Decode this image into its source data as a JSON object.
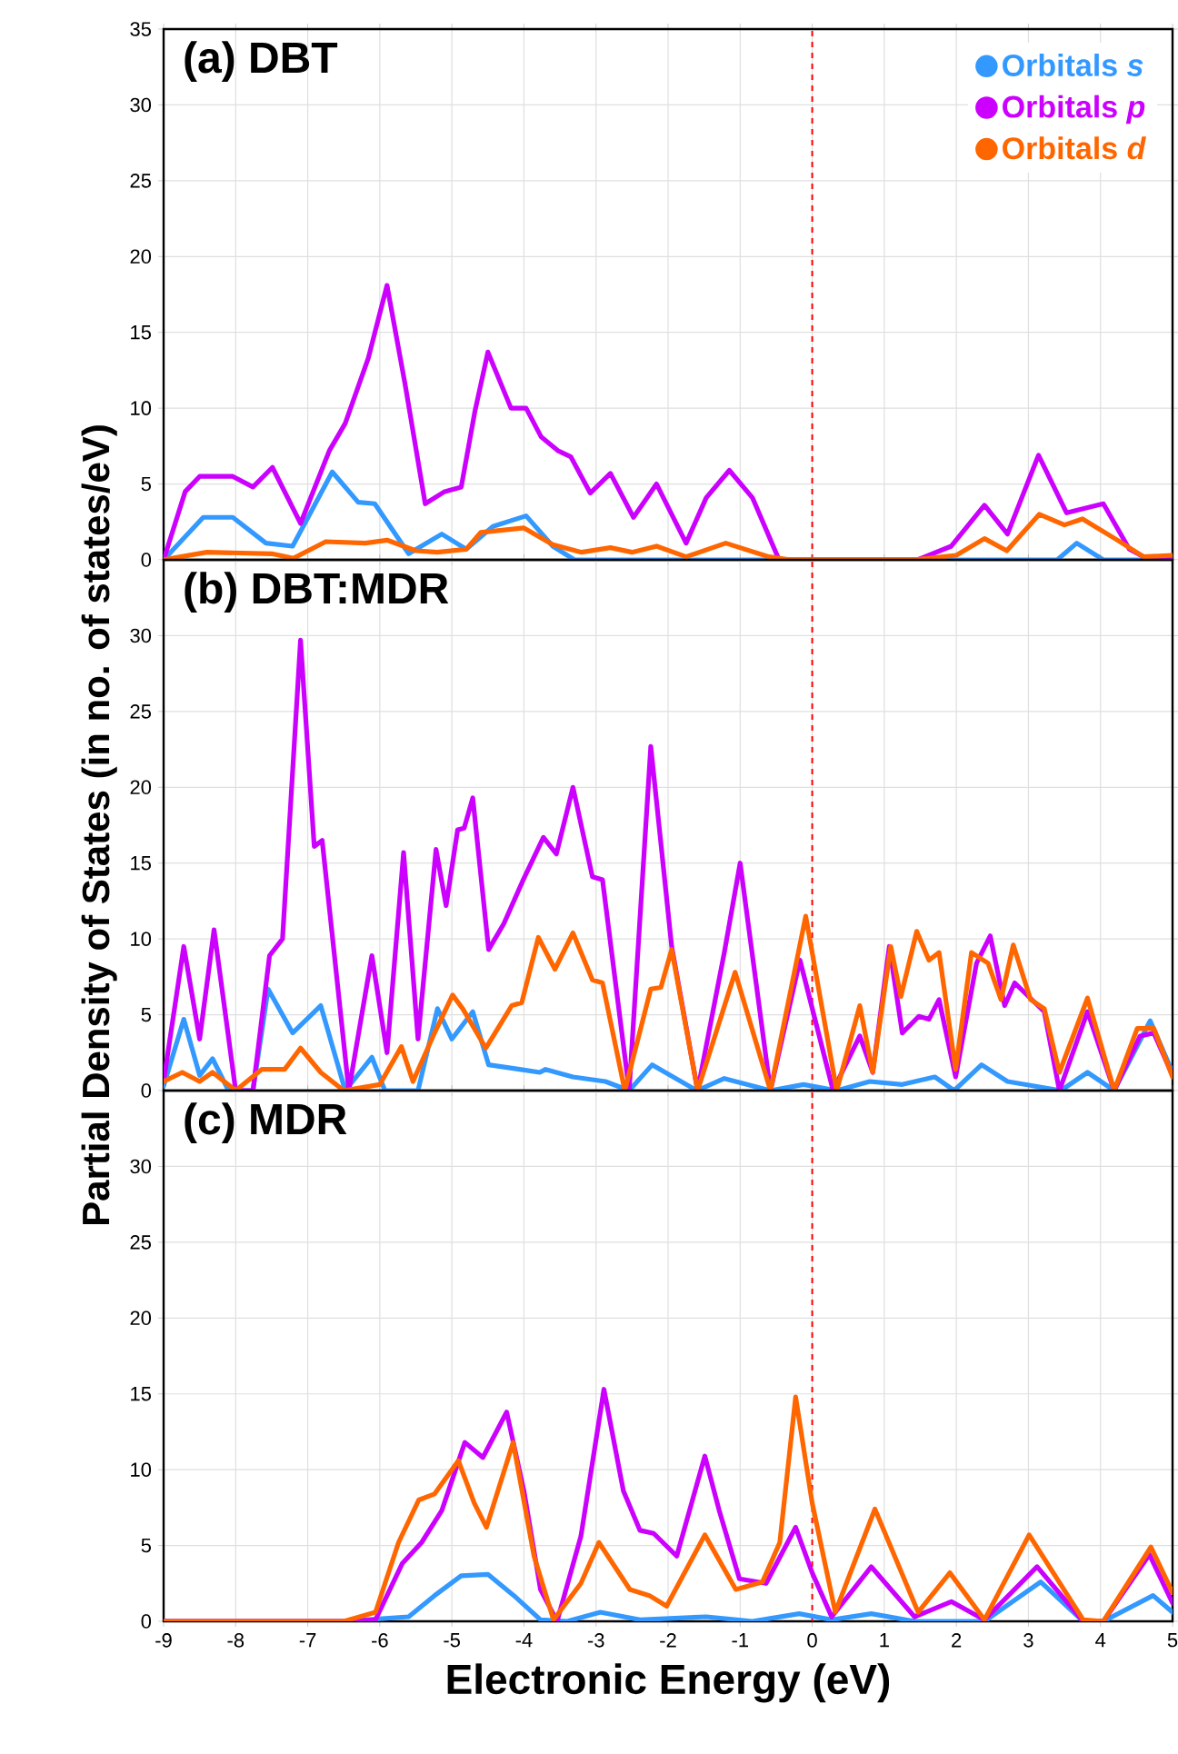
{
  "chart_data": [
    {
      "type": "line",
      "title": "(a) DBT",
      "xlim": [
        -9,
        5
      ],
      "ylim": [
        0,
        35
      ],
      "xticks": [
        -9,
        -8,
        -7,
        -6,
        -5,
        -4,
        -3,
        -2,
        -1,
        0,
        1,
        2,
        3,
        4,
        5
      ],
      "yticks": [
        0,
        5,
        10,
        15,
        20,
        25,
        30,
        35
      ],
      "tick_labels": "y",
      "grid": true,
      "legend": "top right",
      "marker": "none",
      "line_style": "solid",
      "ref_lines": [
        {
          "axis": "x",
          "value": 0,
          "color": "#ff0000",
          "line_style": "dashed"
        }
      ],
      "series": [
        {
          "name": "Orbitals *s*",
          "color": "#3399ff",
          "x": [
            -9,
            -8.45,
            -8.04,
            -7.58,
            -7.21,
            -6.94,
            -6.66,
            -6.3,
            -6.07,
            -5.6,
            -5.14,
            -4.8,
            -4.43,
            -3.97,
            -3.6,
            -3.3,
            3.4,
            3.67,
            4.04,
            5
          ],
          "values": [
            0,
            2.8,
            2.8,
            1.1,
            0.9,
            3.3,
            5.8,
            3.8,
            3.7,
            0.4,
            1.7,
            0.7,
            2.2,
            2.9,
            0.9,
            0,
            0,
            1.1,
            0,
            0
          ]
        },
        {
          "name": "Orbitals *p*",
          "color": "#cc00ff",
          "x": [
            -9,
            -8.7,
            -8.5,
            -8.04,
            -7.76,
            -7.49,
            -7.1,
            -6.7,
            -6.48,
            -6.16,
            -5.9,
            -5.65,
            -5.37,
            -5.1,
            -4.87,
            -4.68,
            -4.5,
            -4.18,
            -3.97,
            -3.76,
            -3.53,
            -3.35,
            -3.08,
            -2.8,
            -2.48,
            -2.16,
            -1.75,
            -1.47,
            -1.15,
            -0.83,
            -0.46,
            0,
            1.46,
            1.93,
            2.39,
            2.71,
            3.14,
            3.53,
            4.04,
            4.4,
            4.68,
            5
          ],
          "values": [
            0,
            4.5,
            5.5,
            5.5,
            4.8,
            6.1,
            2.4,
            7.2,
            9,
            13.3,
            18.1,
            11.6,
            3.7,
            4.5,
            4.8,
            9.8,
            13.7,
            10,
            10,
            8.1,
            7.2,
            6.8,
            4.4,
            5.7,
            2.8,
            5,
            1.1,
            4.1,
            5.9,
            4.1,
            0,
            0,
            0,
            0.9,
            3.6,
            1.7,
            6.9,
            3.1,
            3.7,
            0.7,
            0,
            0.2
          ]
        },
        {
          "name": "Orbitals *d*",
          "color": "#ff6600",
          "x": [
            -9,
            -8.4,
            -7.5,
            -7.2,
            -6.75,
            -6.2,
            -5.9,
            -5.5,
            -5.2,
            -4.8,
            -4.6,
            -4.0,
            -3.6,
            -3.2,
            -2.8,
            -2.5,
            -2.16,
            -1.75,
            -1.2,
            -0.6,
            -0.3,
            1.4,
            2.0,
            2.39,
            2.7,
            3.15,
            3.5,
            3.75,
            4.2,
            4.6,
            5
          ],
          "values": [
            0,
            0.5,
            0.4,
            0.1,
            1.2,
            1.1,
            1.3,
            0.6,
            0.5,
            0.7,
            1.8,
            2.1,
            1.0,
            0.5,
            0.8,
            0.5,
            0.9,
            0.2,
            1.1,
            0.2,
            0,
            0,
            0.3,
            1.4,
            0.6,
            3.0,
            2.3,
            2.7,
            1.4,
            0.2,
            0.3
          ]
        }
      ]
    },
    {
      "type": "line",
      "title": "(b) DBT:MDR",
      "ylabel": "Partial Density of States (in no. of states/eV)",
      "xlim": [
        -9,
        5
      ],
      "ylim": [
        0,
        35
      ],
      "xticks": [
        -9,
        -8,
        -7,
        -6,
        -5,
        -4,
        -3,
        -2,
        -1,
        0,
        1,
        2,
        3,
        4,
        5
      ],
      "yticks": [
        0,
        5,
        10,
        15,
        20,
        25,
        30
      ],
      "tick_labels": "y",
      "grid": true,
      "marker": "none",
      "line_style": "solid",
      "ref_lines": [
        {
          "axis": "x",
          "value": 0,
          "color": "#ff0000",
          "line_style": "dashed"
        }
      ],
      "series": [
        {
          "color": "#3399ff",
          "x": [
            -9,
            -8.72,
            -8.5,
            -8.32,
            -8.1,
            -7.76,
            -7.55,
            -7.21,
            -6.82,
            -6.48,
            -6.11,
            -5.93,
            -5.47,
            -5.2,
            -5.0,
            -4.71,
            -4.49,
            -4.06,
            -3.78,
            -3.7,
            -3.32,
            -2.87,
            -2.54,
            -2.22,
            -1.6,
            -1.22,
            -0.58,
            -0.12,
            0.34,
            0.8,
            1.25,
            1.7,
            1.97,
            2.35,
            2.71,
            3.08,
            3.45,
            3.82,
            4.19,
            4.69,
            5
          ],
          "values": [
            0.3,
            4.7,
            1.0,
            2.1,
            0,
            0,
            6.7,
            3.8,
            5.6,
            0,
            2.2,
            0,
            0,
            5.4,
            3.4,
            5.2,
            1.7,
            1.4,
            1.2,
            1.4,
            0.9,
            0.6,
            0,
            1.7,
            0,
            0.8,
            0,
            0.4,
            0,
            0.6,
            0.4,
            0.9,
            0,
            1.7,
            0.6,
            0.3,
            0,
            1.2,
            0,
            4.6,
            1.2
          ]
        },
        {
          "color": "#cc00ff",
          "x": [
            -9,
            -8.72,
            -8.5,
            -8.3,
            -8.0,
            -7.76,
            -7.53,
            -7.35,
            -7.1,
            -6.91,
            -6.8,
            -6.43,
            -6.11,
            -5.9,
            -5.67,
            -5.47,
            -5.22,
            -5.08,
            -4.92,
            -4.83,
            -4.71,
            -4.49,
            -4.28,
            -4.01,
            -3.73,
            -3.55,
            -3.32,
            -3.05,
            -2.91,
            -2.54,
            -2.24,
            -1.95,
            -1.59,
            -1.22,
            -1.0,
            -0.58,
            -0.17,
            0.29,
            0.66,
            0.84,
            1.07,
            1.25,
            1.48,
            1.62,
            1.76,
            1.99,
            2.28,
            2.47,
            2.67,
            2.81,
            3.22,
            3.43,
            3.82,
            4.19,
            4.55,
            4.74,
            5
          ],
          "values": [
            0.6,
            9.5,
            3.4,
            10.6,
            0,
            0,
            8.9,
            10,
            29.7,
            16.1,
            16.5,
            0,
            8.9,
            2.5,
            15.7,
            3.4,
            15.9,
            12.2,
            17.2,
            17.3,
            19.3,
            9.3,
            11,
            13.9,
            16.7,
            15.6,
            20,
            14.1,
            13.9,
            0,
            22.7,
            9.5,
            0,
            9.1,
            15,
            0,
            8.6,
            0,
            3.6,
            1.2,
            9.5,
            3.8,
            4.9,
            4.7,
            6,
            0.9,
            8.4,
            10.2,
            5.6,
            7.1,
            5.2,
            0,
            5.2,
            0,
            3.6,
            3.8,
            1.0
          ]
        },
        {
          "color": "#ff6600",
          "x": [
            -9,
            -8.74,
            -8.5,
            -8.32,
            -8.0,
            -7.64,
            -7.32,
            -7.1,
            -6.82,
            -6.5,
            -6.0,
            -5.7,
            -5.54,
            -5.26,
            -4.99,
            -4.85,
            -4.53,
            -4.17,
            -4.03,
            -3.8,
            -3.57,
            -3.32,
            -3.05,
            -2.91,
            -2.6,
            -2.24,
            -2.1,
            -1.95,
            -1.59,
            -1.07,
            -0.58,
            -0.09,
            0.34,
            0.66,
            0.84,
            1.09,
            1.23,
            1.45,
            1.62,
            1.76,
            1.99,
            2.21,
            2.44,
            2.62,
            2.79,
            3.03,
            3.22,
            3.43,
            3.82,
            4.19,
            4.51,
            4.74,
            5
          ],
          "values": [
            0.6,
            1.2,
            0.6,
            1.2,
            0,
            1.4,
            1.4,
            2.8,
            1.2,
            0,
            0.4,
            2.9,
            0.6,
            3.6,
            6.3,
            5.4,
            2.8,
            5.6,
            5.8,
            10.1,
            8,
            10.4,
            7.3,
            7.1,
            0,
            6.7,
            6.8,
            9.3,
            0,
            7.8,
            0,
            11.5,
            0,
            5.6,
            1.2,
            9.5,
            6.2,
            10.5,
            8.6,
            9.1,
            1.4,
            9.1,
            8.4,
            6,
            9.6,
            6,
            5.4,
            1.2,
            6.1,
            0,
            4.1,
            4.1,
            0.9
          ]
        }
      ]
    },
    {
      "type": "line",
      "title": "(c) MDR",
      "xlabel": "Electronic Energy (eV)",
      "xlim": [
        -9,
        5
      ],
      "ylim": [
        0,
        35
      ],
      "xticks": [
        -9,
        -8,
        -7,
        -6,
        -5,
        -4,
        -3,
        -2,
        -1,
        0,
        1,
        2,
        3,
        4,
        5
      ],
      "yticks": [
        0,
        5,
        10,
        15,
        20,
        25,
        30
      ],
      "grid": true,
      "marker": "none",
      "line_style": "solid",
      "ref_lines": [
        {
          "axis": "x",
          "value": 0,
          "color": "#ff0000",
          "line_style": "dashed"
        }
      ],
      "series": [
        {
          "color": "#3399ff",
          "x": [
            -9,
            -6.5,
            -5.6,
            -5.24,
            -4.87,
            -4.5,
            -4.14,
            -3.77,
            -3.4,
            -2.94,
            -2.39,
            -1.47,
            -0.83,
            -0.18,
            0.27,
            0.82,
            1.42,
            2.0,
            2.39,
            3.17,
            3.76,
            4.04,
            4.73,
            5
          ],
          "values": [
            0,
            0,
            0.3,
            1.7,
            3.0,
            3.1,
            1.7,
            0.1,
            0,
            0.6,
            0.1,
            0.3,
            0,
            0.5,
            0.1,
            0.5,
            0,
            0,
            0,
            2.6,
            0,
            0,
            1.7,
            0.6
          ]
        },
        {
          "color": "#cc00ff",
          "x": [
            -9,
            -6.47,
            -6.06,
            -5.69,
            -5.42,
            -5.14,
            -4.82,
            -4.57,
            -4.24,
            -4.0,
            -3.77,
            -3.54,
            -3.21,
            -2.89,
            -2.62,
            -2.39,
            -2.2,
            -1.88,
            -1.49,
            -1.29,
            -1.01,
            -0.64,
            -0.23,
            0.0,
            0.27,
            0.82,
            1.42,
            1.93,
            2.39,
            3.12,
            3.76,
            4.04,
            4.68,
            5
          ],
          "values": [
            0,
            0,
            0.1,
            3.8,
            5.2,
            7.3,
            11.8,
            10.8,
            13.8,
            8.6,
            2.1,
            0,
            5.6,
            15.3,
            8.6,
            6,
            5.8,
            4.3,
            10.9,
            7.3,
            2.8,
            2.5,
            6.2,
            3.2,
            0.3,
            3.6,
            0.3,
            1.3,
            0.1,
            3.6,
            0,
            0,
            4.4,
            1.2
          ]
        },
        {
          "color": "#ff6600",
          "x": [
            -9,
            -6.5,
            -6.06,
            -5.74,
            -5.46,
            -5.24,
            -4.91,
            -4.69,
            -4.52,
            -4.15,
            -3.86,
            -3.59,
            -3.21,
            -2.96,
            -2.53,
            -2.26,
            -2.02,
            -1.49,
            -1.06,
            -0.69,
            -0.45,
            -0.23,
            0.0,
            0.32,
            0.87,
            1.47,
            1.91,
            2.39,
            3.01,
            3.76,
            4.04,
            4.7,
            5
          ],
          "values": [
            0,
            0,
            0.6,
            5.2,
            8,
            8.4,
            10.6,
            7.8,
            6.2,
            11.8,
            4.3,
            0.1,
            2.5,
            5.2,
            2.1,
            1.7,
            1.0,
            5.7,
            2.1,
            2.6,
            5.2,
            14.8,
            7.8,
            0.6,
            7.4,
            0.6,
            3.2,
            0.1,
            5.7,
            0.1,
            0,
            4.9,
            1.9
          ]
        }
      ]
    }
  ]
}
